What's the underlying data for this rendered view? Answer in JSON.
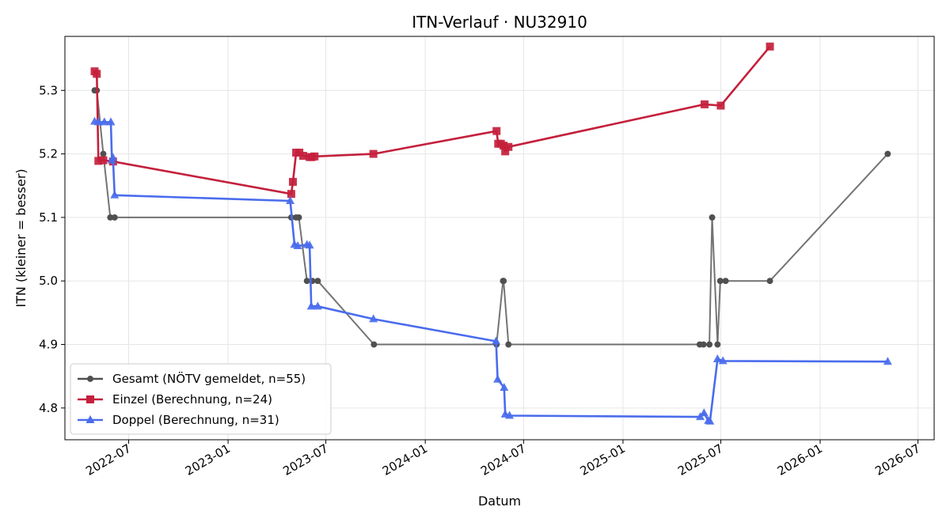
{
  "chart_data": {
    "type": "line",
    "title": "ITN-Verlauf · NU32910",
    "xlabel": "Datum",
    "ylabel": "ITN  (kleiner = besser)",
    "x_is_date": true,
    "xlim": [
      "2022-03-05",
      "2026-07-31"
    ],
    "ylim": [
      4.75,
      5.385
    ],
    "x_ticks": [
      "2022-07-01",
      "2023-01-01",
      "2023-07-01",
      "2024-01-01",
      "2024-07-01",
      "2025-01-01",
      "2025-07-01",
      "2026-01-01",
      "2026-07-01"
    ],
    "x_tick_labels": [
      "2022-07",
      "2023-01",
      "2023-07",
      "2024-01",
      "2024-07",
      "2025-01",
      "2025-07",
      "2026-01",
      "2026-07"
    ],
    "y_ticks": [
      4.8,
      4.9,
      5.0,
      5.1,
      5.2,
      5.3
    ],
    "y_tick_labels": [
      "4.8",
      "4.9",
      "5.0",
      "5.1",
      "5.2",
      "5.3"
    ],
    "grid": true,
    "legend_position": "lower-left",
    "series": [
      {
        "name": "Gesamt (NÖTV gemeldet, n=55)",
        "color": "#505050",
        "marker": "circle",
        "points": [
          {
            "x": "2022-04-29",
            "y": 5.3
          },
          {
            "x": "2022-05-03",
            "y": 5.3
          },
          {
            "x": "2022-05-15",
            "y": 5.2
          },
          {
            "x": "2022-05-28",
            "y": 5.1
          },
          {
            "x": "2022-06-05",
            "y": 5.1
          },
          {
            "x": "2023-04-28",
            "y": 5.1
          },
          {
            "x": "2023-05-07",
            "y": 5.1
          },
          {
            "x": "2023-05-12",
            "y": 5.1
          },
          {
            "x": "2023-05-27",
            "y": 5.0
          },
          {
            "x": "2023-06-06",
            "y": 5.0
          },
          {
            "x": "2023-06-16",
            "y": 5.0
          },
          {
            "x": "2023-09-28",
            "y": 4.9
          },
          {
            "x": "2024-05-12",
            "y": 4.9
          },
          {
            "x": "2024-05-24",
            "y": 5.0
          },
          {
            "x": "2024-05-25",
            "y": 5.0
          },
          {
            "x": "2024-06-03",
            "y": 4.9
          },
          {
            "x": "2025-05-23",
            "y": 4.9
          },
          {
            "x": "2025-05-30",
            "y": 4.9
          },
          {
            "x": "2025-06-10",
            "y": 4.9
          },
          {
            "x": "2025-06-15",
            "y": 5.1
          },
          {
            "x": "2025-06-25",
            "y": 4.9
          },
          {
            "x": "2025-06-30",
            "y": 5.0
          },
          {
            "x": "2025-07-10",
            "y": 5.0
          },
          {
            "x": "2025-09-30",
            "y": 5.0
          },
          {
            "x": "2026-05-06",
            "y": 5.2
          }
        ]
      },
      {
        "name": "Einzel (Berechnung, n=24)",
        "color": "#c4203c",
        "marker": "square",
        "points": [
          {
            "x": "2022-04-29",
            "y": 5.33
          },
          {
            "x": "2022-05-03",
            "y": 5.326
          },
          {
            "x": "2022-05-06",
            "y": 5.189
          },
          {
            "x": "2022-05-15",
            "y": 5.19
          },
          {
            "x": "2022-06-02",
            "y": 5.188
          },
          {
            "x": "2023-04-28",
            "y": 5.137
          },
          {
            "x": "2023-05-01",
            "y": 5.156
          },
          {
            "x": "2023-05-07",
            "y": 5.202
          },
          {
            "x": "2023-05-13",
            "y": 5.202
          },
          {
            "x": "2023-05-20",
            "y": 5.197
          },
          {
            "x": "2023-06-01",
            "y": 5.195
          },
          {
            "x": "2023-06-05",
            "y": 5.195
          },
          {
            "x": "2023-06-10",
            "y": 5.196
          },
          {
            "x": "2023-09-27",
            "y": 5.2
          },
          {
            "x": "2024-05-12",
            "y": 5.236
          },
          {
            "x": "2024-05-15",
            "y": 5.216
          },
          {
            "x": "2024-05-20",
            "y": 5.216
          },
          {
            "x": "2024-05-25",
            "y": 5.213
          },
          {
            "x": "2024-05-28",
            "y": 5.204
          },
          {
            "x": "2024-06-03",
            "y": 5.211
          },
          {
            "x": "2025-06-01",
            "y": 5.278
          },
          {
            "x": "2025-07-01",
            "y": 5.276
          },
          {
            "x": "2025-09-30",
            "y": 5.369
          }
        ]
      },
      {
        "name": "Doppel (Berechnung, n=31)",
        "color": "#4a6cec",
        "marker": "triangle",
        "points": [
          {
            "x": "2022-04-29",
            "y": 5.251
          },
          {
            "x": "2022-05-06",
            "y": 5.25
          },
          {
            "x": "2022-05-17",
            "y": 5.25
          },
          {
            "x": "2022-05-29",
            "y": 5.25
          },
          {
            "x": "2022-05-31",
            "y": 5.19
          },
          {
            "x": "2022-06-02",
            "y": 5.194
          },
          {
            "x": "2022-06-05",
            "y": 5.135
          },
          {
            "x": "2023-04-26",
            "y": 5.126
          },
          {
            "x": "2023-05-04",
            "y": 5.057
          },
          {
            "x": "2023-05-10",
            "y": 5.055
          },
          {
            "x": "2023-05-27",
            "y": 5.057
          },
          {
            "x": "2023-06-01",
            "y": 5.056
          },
          {
            "x": "2023-06-04",
            "y": 4.96
          },
          {
            "x": "2023-06-16",
            "y": 4.96
          },
          {
            "x": "2023-09-27",
            "y": 4.94
          },
          {
            "x": "2024-05-11",
            "y": 4.905
          },
          {
            "x": "2024-05-14",
            "y": 4.845
          },
          {
            "x": "2024-05-26",
            "y": 4.832
          },
          {
            "x": "2024-05-28",
            "y": 4.79
          },
          {
            "x": "2024-06-05",
            "y": 4.788
          },
          {
            "x": "2025-05-24",
            "y": 4.786
          },
          {
            "x": "2025-05-31",
            "y": 4.792
          },
          {
            "x": "2025-06-08",
            "y": 4.78
          },
          {
            "x": "2025-06-11",
            "y": 4.779
          },
          {
            "x": "2025-06-25",
            "y": 4.877
          },
          {
            "x": "2025-07-05",
            "y": 4.874
          },
          {
            "x": "2026-05-06",
            "y": 4.873
          }
        ]
      }
    ]
  }
}
